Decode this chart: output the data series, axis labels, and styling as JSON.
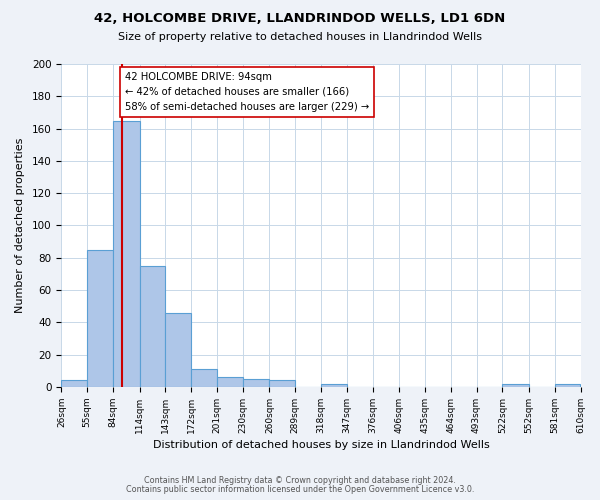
{
  "title": "42, HOLCOMBE DRIVE, LLANDRINDOD WELLS, LD1 6DN",
  "subtitle": "Size of property relative to detached houses in Llandrindod Wells",
  "xlabel": "Distribution of detached houses by size in Llandrindod Wells",
  "ylabel": "Number of detached properties",
  "bar_color": "#aec6e8",
  "bar_edge_color": "#5a9fd4",
  "annotation_box_edge": "#cc0000",
  "annotation_line_color": "#cc0000",
  "annotation_text1": "42 HOLCOMBE DRIVE: 94sqm",
  "annotation_text2": "← 42% of detached houses are smaller (166)",
  "annotation_text3": "58% of semi-detached houses are larger (229) →",
  "property_line_x": 94,
  "bin_edges": [
    26,
    55,
    84,
    114,
    143,
    172,
    201,
    230,
    260,
    289,
    318,
    347,
    376,
    406,
    435,
    464,
    493,
    522,
    552,
    581,
    610
  ],
  "bar_heights": [
    4,
    85,
    165,
    75,
    46,
    11,
    6,
    5,
    4,
    0,
    2,
    0,
    0,
    0,
    0,
    0,
    0,
    2,
    0,
    2
  ],
  "ylim": [
    0,
    200
  ],
  "yticks": [
    0,
    20,
    40,
    60,
    80,
    100,
    120,
    140,
    160,
    180,
    200
  ],
  "footer_text1": "Contains HM Land Registry data © Crown copyright and database right 2024.",
  "footer_text2": "Contains public sector information licensed under the Open Government Licence v3.0.",
  "background_color": "#eef2f8",
  "plot_bg_color": "#ffffff",
  "grid_color": "#c8d8e8"
}
